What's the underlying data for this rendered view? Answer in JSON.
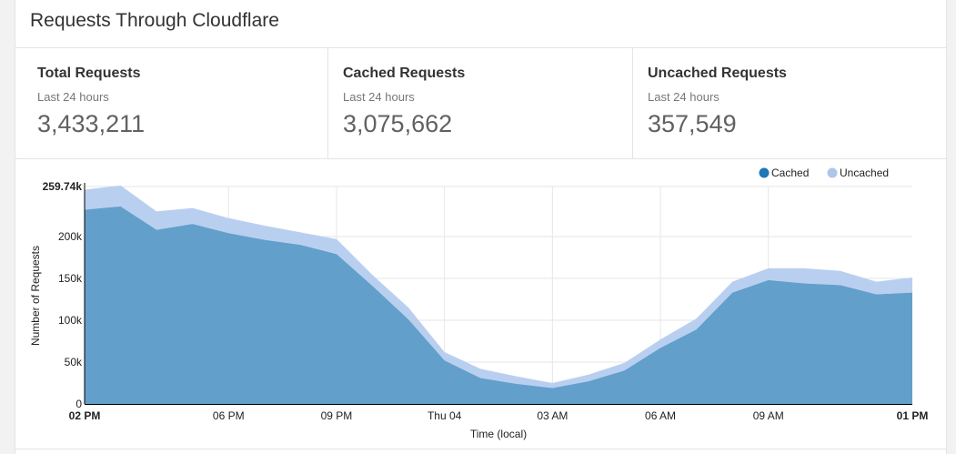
{
  "panel": {
    "title": "Requests Through Cloudflare"
  },
  "stats": [
    {
      "label": "Total Requests",
      "period": "Last 24 hours",
      "value": "3,433,211"
    },
    {
      "label": "Cached Requests",
      "period": "Last 24 hours",
      "value": "3,075,662"
    },
    {
      "label": "Uncached Requests",
      "period": "Last 24 hours",
      "value": "357,549"
    }
  ],
  "colors": {
    "cached": "#639fcb",
    "uncached": "#b9cff0",
    "cached_legend": "#1f77b4",
    "uncached_legend": "#aec7e8"
  },
  "chart_data": {
    "type": "area",
    "stacked": true,
    "title": "",
    "xlabel": "Time (local)",
    "ylabel": "Number of Requests",
    "ylim": [
      0,
      259740
    ],
    "y_ticks": [
      {
        "value": 0,
        "label": "0"
      },
      {
        "value": 50000,
        "label": "50k"
      },
      {
        "value": 100000,
        "label": "100k"
      },
      {
        "value": 150000,
        "label": "150k"
      },
      {
        "value": 200000,
        "label": "200k"
      },
      {
        "value": 259740,
        "label": "259.74k"
      }
    ],
    "x_ticks": [
      {
        "hour": 0,
        "label": "02 PM",
        "bold": true
      },
      {
        "hour": 4,
        "label": "06 PM",
        "bold": false
      },
      {
        "hour": 7,
        "label": "09 PM",
        "bold": false
      },
      {
        "hour": 10,
        "label": "Thu 04",
        "bold": false
      },
      {
        "hour": 13,
        "label": "03 AM",
        "bold": false
      },
      {
        "hour": 16,
        "label": "06 AM",
        "bold": false
      },
      {
        "hour": 19,
        "label": "09 AM",
        "bold": false
      },
      {
        "hour": 23,
        "label": "01 PM",
        "bold": true
      }
    ],
    "x_hours": [
      0,
      1,
      2,
      3,
      4,
      5,
      6,
      7,
      8,
      9,
      10,
      11,
      12,
      13,
      14,
      15,
      16,
      17,
      18,
      19,
      20,
      21,
      22,
      23
    ],
    "legend": {
      "position": "top-right"
    },
    "series": [
      {
        "name": "Cached",
        "values": [
          232000,
          236000,
          208000,
          215000,
          204000,
          196000,
          190000,
          179000,
          141000,
          101000,
          52000,
          31000,
          24000,
          19000,
          27000,
          40000,
          67000,
          89000,
          133000,
          148000,
          144000,
          142000,
          131000,
          133000
        ]
      },
      {
        "name": "Uncached",
        "values": [
          24000,
          25000,
          22000,
          19000,
          18000,
          17000,
          15000,
          18000,
          13000,
          14000,
          10000,
          11000,
          9000,
          6000,
          8000,
          9000,
          10000,
          13000,
          13000,
          14000,
          18000,
          17000,
          15000,
          18000
        ]
      }
    ]
  }
}
